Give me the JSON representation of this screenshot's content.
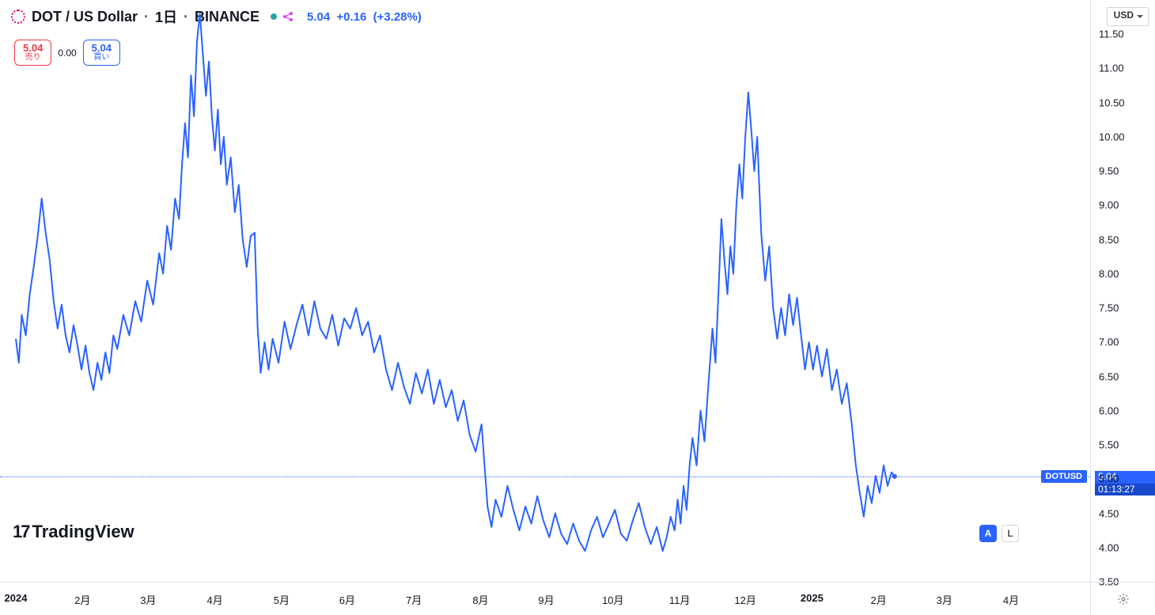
{
  "header": {
    "symbol": "DOT / US Dollar",
    "interval": "1日",
    "exchange": "BINANCE",
    "last": "5.04",
    "change": "+0.16",
    "change_pct": "(+3.28%)",
    "currency": "USD",
    "ohlc_color": "#2962ff",
    "icon_color": "#e6007a"
  },
  "quote": {
    "sell_price": "5.04",
    "sell_label": "売り",
    "spread": "0.00",
    "buy_price": "5.04",
    "buy_label": "買い",
    "sell_color": "#f23645",
    "buy_color": "#2962ff"
  },
  "yaxis": {
    "min": 3.5,
    "max": 12.0,
    "ticks": [
      3.5,
      4.0,
      4.5,
      5.0,
      5.5,
      6.0,
      6.5,
      7.0,
      7.5,
      8.0,
      8.5,
      9.0,
      9.5,
      10.0,
      10.5,
      11.0,
      11.5
    ],
    "tick_color": "#131722",
    "fontsize": 13
  },
  "xaxis": {
    "ticks": [
      {
        "t": 0.0,
        "label": "2024",
        "bold": true
      },
      {
        "t": 0.067,
        "label": "2月"
      },
      {
        "t": 0.133,
        "label": "3月"
      },
      {
        "t": 0.2,
        "label": "4月"
      },
      {
        "t": 0.267,
        "label": "5月"
      },
      {
        "t": 0.333,
        "label": "6月"
      },
      {
        "t": 0.4,
        "label": "7月"
      },
      {
        "t": 0.467,
        "label": "8月"
      },
      {
        "t": 0.533,
        "label": "9月"
      },
      {
        "t": 0.6,
        "label": "10月"
      },
      {
        "t": 0.667,
        "label": "11月"
      },
      {
        "t": 0.733,
        "label": "12月"
      },
      {
        "t": 0.8,
        "label": "2025",
        "bold": true
      },
      {
        "t": 0.867,
        "label": "2月"
      },
      {
        "t": 0.933,
        "label": "3月"
      },
      {
        "t": 1.0,
        "label": "4月"
      }
    ],
    "tick_color": "#131722",
    "fontsize": 13
  },
  "price_marker": {
    "symbol_tag": "DOTUSD",
    "price": "5.04",
    "countdown": "01:13:27",
    "tag_bg": "#2962ff"
  },
  "chart": {
    "type": "line",
    "line_color": "#2962ff",
    "line_width": 2,
    "background_color": "#ffffff",
    "marker_color": "#2962ff",
    "marker_radius": 3,
    "ylim": [
      3.5,
      12.0
    ],
    "series": [
      [
        0.0,
        7.05
      ],
      [
        0.003,
        6.7
      ],
      [
        0.006,
        7.4
      ],
      [
        0.01,
        7.1
      ],
      [
        0.014,
        7.7
      ],
      [
        0.018,
        8.1
      ],
      [
        0.022,
        8.55
      ],
      [
        0.026,
        9.1
      ],
      [
        0.03,
        8.6
      ],
      [
        0.034,
        8.2
      ],
      [
        0.038,
        7.6
      ],
      [
        0.042,
        7.2
      ],
      [
        0.046,
        7.55
      ],
      [
        0.05,
        7.1
      ],
      [
        0.054,
        6.85
      ],
      [
        0.058,
        7.25
      ],
      [
        0.062,
        6.95
      ],
      [
        0.066,
        6.6
      ],
      [
        0.07,
        6.95
      ],
      [
        0.074,
        6.55
      ],
      [
        0.078,
        6.3
      ],
      [
        0.082,
        6.7
      ],
      [
        0.086,
        6.45
      ],
      [
        0.09,
        6.85
      ],
      [
        0.094,
        6.55
      ],
      [
        0.098,
        7.1
      ],
      [
        0.102,
        6.9
      ],
      [
        0.108,
        7.4
      ],
      [
        0.114,
        7.1
      ],
      [
        0.12,
        7.6
      ],
      [
        0.126,
        7.3
      ],
      [
        0.132,
        7.9
      ],
      [
        0.138,
        7.55
      ],
      [
        0.144,
        8.3
      ],
      [
        0.148,
        8.0
      ],
      [
        0.152,
        8.7
      ],
      [
        0.156,
        8.35
      ],
      [
        0.16,
        9.1
      ],
      [
        0.164,
        8.8
      ],
      [
        0.167,
        9.6
      ],
      [
        0.17,
        10.2
      ],
      [
        0.173,
        9.7
      ],
      [
        0.176,
        10.9
      ],
      [
        0.179,
        10.3
      ],
      [
        0.182,
        11.4
      ],
      [
        0.185,
        11.8
      ],
      [
        0.188,
        11.2
      ],
      [
        0.191,
        10.6
      ],
      [
        0.194,
        11.1
      ],
      [
        0.197,
        10.3
      ],
      [
        0.2,
        9.8
      ],
      [
        0.203,
        10.4
      ],
      [
        0.206,
        9.6
      ],
      [
        0.209,
        10.0
      ],
      [
        0.212,
        9.3
      ],
      [
        0.216,
        9.7
      ],
      [
        0.22,
        8.9
      ],
      [
        0.224,
        9.3
      ],
      [
        0.228,
        8.5
      ],
      [
        0.232,
        8.1
      ],
      [
        0.236,
        8.55
      ],
      [
        0.24,
        8.6
      ],
      [
        0.243,
        7.2
      ],
      [
        0.246,
        6.55
      ],
      [
        0.25,
        7.0
      ],
      [
        0.254,
        6.6
      ],
      [
        0.258,
        7.05
      ],
      [
        0.264,
        6.7
      ],
      [
        0.27,
        7.3
      ],
      [
        0.276,
        6.9
      ],
      [
        0.282,
        7.25
      ],
      [
        0.288,
        7.55
      ],
      [
        0.294,
        7.1
      ],
      [
        0.3,
        7.6
      ],
      [
        0.306,
        7.2
      ],
      [
        0.312,
        7.05
      ],
      [
        0.318,
        7.4
      ],
      [
        0.324,
        6.95
      ],
      [
        0.33,
        7.35
      ],
      [
        0.336,
        7.2
      ],
      [
        0.342,
        7.5
      ],
      [
        0.348,
        7.1
      ],
      [
        0.354,
        7.3
      ],
      [
        0.36,
        6.85
      ],
      [
        0.366,
        7.1
      ],
      [
        0.372,
        6.6
      ],
      [
        0.378,
        6.3
      ],
      [
        0.384,
        6.7
      ],
      [
        0.39,
        6.35
      ],
      [
        0.396,
        6.1
      ],
      [
        0.402,
        6.55
      ],
      [
        0.408,
        6.25
      ],
      [
        0.414,
        6.6
      ],
      [
        0.42,
        6.1
      ],
      [
        0.426,
        6.45
      ],
      [
        0.432,
        6.05
      ],
      [
        0.438,
        6.3
      ],
      [
        0.444,
        5.85
      ],
      [
        0.45,
        6.15
      ],
      [
        0.456,
        5.65
      ],
      [
        0.462,
        5.4
      ],
      [
        0.468,
        5.8
      ],
      [
        0.474,
        4.6
      ],
      [
        0.478,
        4.3
      ],
      [
        0.482,
        4.7
      ],
      [
        0.488,
        4.45
      ],
      [
        0.494,
        4.9
      ],
      [
        0.5,
        4.55
      ],
      [
        0.506,
        4.25
      ],
      [
        0.512,
        4.6
      ],
      [
        0.518,
        4.35
      ],
      [
        0.524,
        4.75
      ],
      [
        0.53,
        4.4
      ],
      [
        0.536,
        4.15
      ],
      [
        0.542,
        4.5
      ],
      [
        0.548,
        4.2
      ],
      [
        0.554,
        4.05
      ],
      [
        0.56,
        4.35
      ],
      [
        0.566,
        4.1
      ],
      [
        0.572,
        3.95
      ],
      [
        0.578,
        4.25
      ],
      [
        0.584,
        4.45
      ],
      [
        0.59,
        4.15
      ],
      [
        0.596,
        4.35
      ],
      [
        0.602,
        4.55
      ],
      [
        0.608,
        4.2
      ],
      [
        0.614,
        4.1
      ],
      [
        0.62,
        4.4
      ],
      [
        0.626,
        4.65
      ],
      [
        0.632,
        4.3
      ],
      [
        0.638,
        4.05
      ],
      [
        0.644,
        4.3
      ],
      [
        0.65,
        3.95
      ],
      [
        0.654,
        4.15
      ],
      [
        0.658,
        4.45
      ],
      [
        0.662,
        4.25
      ],
      [
        0.665,
        4.7
      ],
      [
        0.668,
        4.35
      ],
      [
        0.671,
        4.9
      ],
      [
        0.674,
        4.55
      ],
      [
        0.677,
        5.2
      ],
      [
        0.68,
        5.6
      ],
      [
        0.684,
        5.2
      ],
      [
        0.688,
        6.0
      ],
      [
        0.692,
        5.55
      ],
      [
        0.696,
        6.4
      ],
      [
        0.7,
        7.2
      ],
      [
        0.703,
        6.7
      ],
      [
        0.706,
        7.7
      ],
      [
        0.709,
        8.8
      ],
      [
        0.712,
        8.2
      ],
      [
        0.715,
        7.7
      ],
      [
        0.718,
        8.4
      ],
      [
        0.721,
        8.0
      ],
      [
        0.724,
        9.0
      ],
      [
        0.727,
        9.6
      ],
      [
        0.73,
        9.1
      ],
      [
        0.733,
        10.0
      ],
      [
        0.736,
        10.65
      ],
      [
        0.739,
        10.1
      ],
      [
        0.742,
        9.5
      ],
      [
        0.745,
        10.0
      ],
      [
        0.749,
        8.6
      ],
      [
        0.753,
        7.9
      ],
      [
        0.757,
        8.4
      ],
      [
        0.761,
        7.5
      ],
      [
        0.765,
        7.05
      ],
      [
        0.769,
        7.5
      ],
      [
        0.773,
        7.1
      ],
      [
        0.777,
        7.7
      ],
      [
        0.781,
        7.25
      ],
      [
        0.785,
        7.65
      ],
      [
        0.789,
        7.1
      ],
      [
        0.793,
        6.6
      ],
      [
        0.797,
        7.0
      ],
      [
        0.801,
        6.6
      ],
      [
        0.805,
        6.95
      ],
      [
        0.81,
        6.5
      ],
      [
        0.815,
        6.9
      ],
      [
        0.82,
        6.3
      ],
      [
        0.825,
        6.6
      ],
      [
        0.83,
        6.1
      ],
      [
        0.835,
        6.4
      ],
      [
        0.84,
        5.8
      ],
      [
        0.844,
        5.2
      ],
      [
        0.848,
        4.8
      ],
      [
        0.852,
        4.45
      ],
      [
        0.856,
        4.9
      ],
      [
        0.86,
        4.65
      ],
      [
        0.864,
        5.05
      ],
      [
        0.868,
        4.8
      ],
      [
        0.872,
        5.2
      ],
      [
        0.876,
        4.9
      ],
      [
        0.88,
        5.1
      ],
      [
        0.883,
        5.04
      ]
    ]
  },
  "logo": {
    "text": "TradingView"
  },
  "badges": {
    "a": "A",
    "l": "L"
  }
}
